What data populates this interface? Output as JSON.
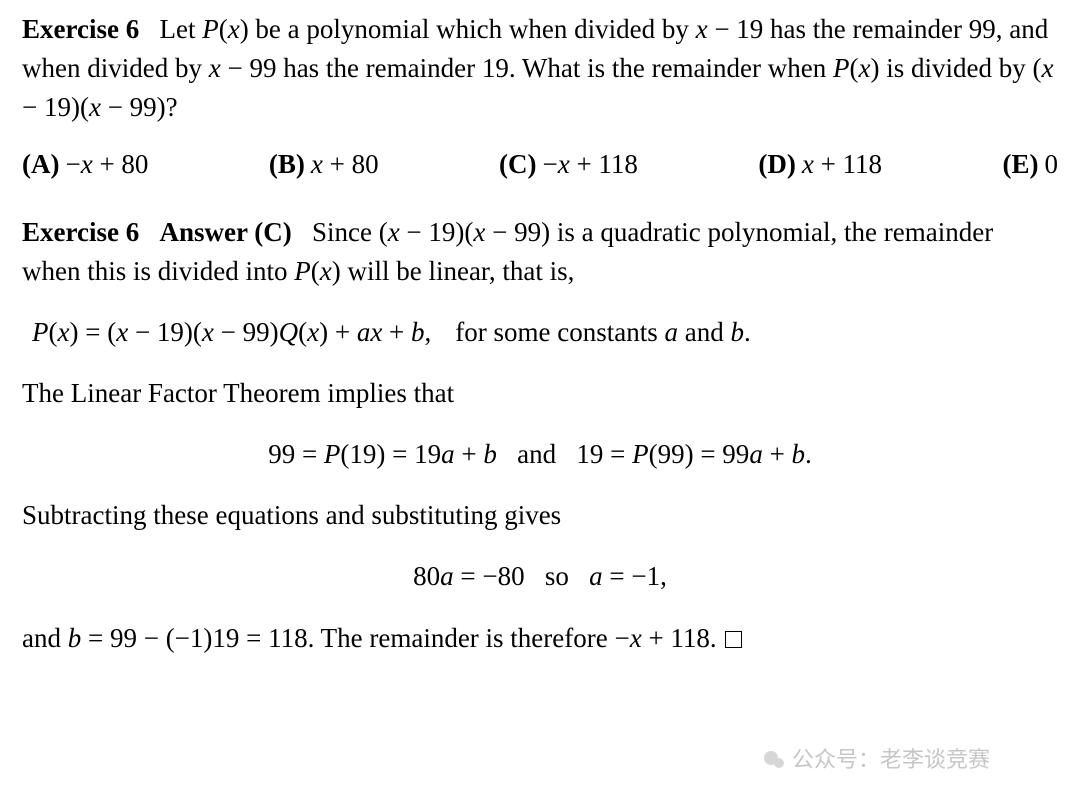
{
  "exercise": {
    "label": "Exercise 6",
    "problem_html": "Let <span class='math'>P</span>(<span class='math'>x</span>) be a polynomial which when divided by <span class='math'>x</span> − 19 has the remainder 99, and when divided by <span class='math'>x</span> − 99 has the remainder 19. What is the remainder when <span class='math'>P</span>(<span class='math'>x</span>) is divided by (<span class='math'>x</span> − 19)(<span class='math'>x</span> − 99)?"
  },
  "options": [
    {
      "label": "(A)",
      "html": "−<span class='math'>x</span> + 80"
    },
    {
      "label": "(B)",
      "html": "<span class='math'>x</span> + 80"
    },
    {
      "label": "(C)",
      "html": "−<span class='math'>x</span> + 118"
    },
    {
      "label": "(D)",
      "html": "<span class='math'>x</span> + 118"
    },
    {
      "label": "(E)",
      "html": "0"
    }
  ],
  "solution": {
    "label": "Exercise 6",
    "answer_label": "Answer (C)",
    "part1_html": "Since (<span class='math'>x</span> − 19)(<span class='math'>x</span> − 99) is a quadratic polynomial, the remainder when this is divided into <span class='math'>P</span>(<span class='math'>x</span>) will be linear, that is,",
    "eq1_html": "<span class='math'>P</span>(<span class='math'>x</span>) = (<span class='math'>x</span> − 19)(<span class='math'>x</span> − 99)<span class='math'>Q</span>(<span class='math'>x</span>) + <span class='math'>ax</span> + <span class='math'>b</span>,",
    "eq1_annot_html": "for some constants <span class='math'>a</span> and <span class='math'>b</span>.",
    "part2_html": "The Linear Factor Theorem implies that",
    "eq2_html": "99 = <span class='math'>P</span>(19) = 19<span class='math'>a</span> + <span class='math'>b</span>&nbsp;&nbsp; and &nbsp;&nbsp;19 = <span class='math'>P</span>(99) = 99<span class='math'>a</span> + <span class='math'>b</span>.",
    "part3_html": "Subtracting these equations and substituting gives",
    "eq3_html": "80<span class='math'>a</span> = −80&nbsp;&nbsp; so &nbsp;&nbsp;<span class='math'>a</span> = −1,",
    "part4_html": "and <span class='math'>b</span> = 99 − (−1)19 = 118. The remainder is therefore −<span class='math'>x</span> + 118."
  },
  "watermark": {
    "text": "公众号：老李谈竞赛",
    "color": "#bdbdbd"
  },
  "colors": {
    "background": "#ffffff",
    "text": "#000000"
  }
}
